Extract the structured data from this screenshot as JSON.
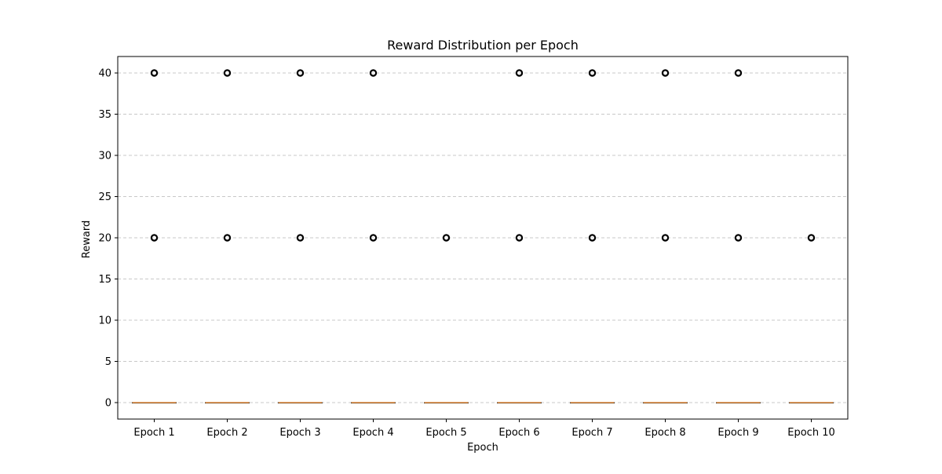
{
  "chart_data": {
    "type": "box",
    "title": "Reward Distribution per Epoch",
    "xlabel": "Epoch",
    "ylabel": "Reward",
    "categories": [
      "Epoch 1",
      "Epoch 2",
      "Epoch 3",
      "Epoch 4",
      "Epoch 5",
      "Epoch 6",
      "Epoch 7",
      "Epoch 8",
      "Epoch 9",
      "Epoch 10"
    ],
    "boxes": [
      {
        "min": 0,
        "q1": 0,
        "median": 0,
        "q3": 0,
        "max": 0,
        "outliers": [
          20,
          40
        ]
      },
      {
        "min": 0,
        "q1": 0,
        "median": 0,
        "q3": 0,
        "max": 0,
        "outliers": [
          20,
          40
        ]
      },
      {
        "min": 0,
        "q1": 0,
        "median": 0,
        "q3": 0,
        "max": 0,
        "outliers": [
          20,
          40
        ]
      },
      {
        "min": 0,
        "q1": 0,
        "median": 0,
        "q3": 0,
        "max": 0,
        "outliers": [
          20,
          40
        ]
      },
      {
        "min": 0,
        "q1": 0,
        "median": 0,
        "q3": 0,
        "max": 0,
        "outliers": [
          20
        ]
      },
      {
        "min": 0,
        "q1": 0,
        "median": 0,
        "q3": 0,
        "max": 0,
        "outliers": [
          20,
          40
        ]
      },
      {
        "min": 0,
        "q1": 0,
        "median": 0,
        "q3": 0,
        "max": 0,
        "outliers": [
          20,
          40
        ]
      },
      {
        "min": 0,
        "q1": 0,
        "median": 0,
        "q3": 0,
        "max": 0,
        "outliers": [
          20,
          40
        ]
      },
      {
        "min": 0,
        "q1": 0,
        "median": 0,
        "q3": 0,
        "max": 0,
        "outliers": [
          20,
          40
        ]
      },
      {
        "min": 0,
        "q1": 0,
        "median": 0,
        "q3": 0,
        "max": 0,
        "outliers": [
          20
        ]
      }
    ],
    "ylim": [
      -2,
      42
    ],
    "yticks": [
      0,
      5,
      10,
      15,
      20,
      25,
      30,
      35,
      40
    ],
    "grid": {
      "y": true,
      "x": false,
      "style": "dashed"
    },
    "colors": {
      "median": "#e08a3c",
      "box": "#000000",
      "outlier": "#000000",
      "grid": "#c8c8c8"
    }
  }
}
